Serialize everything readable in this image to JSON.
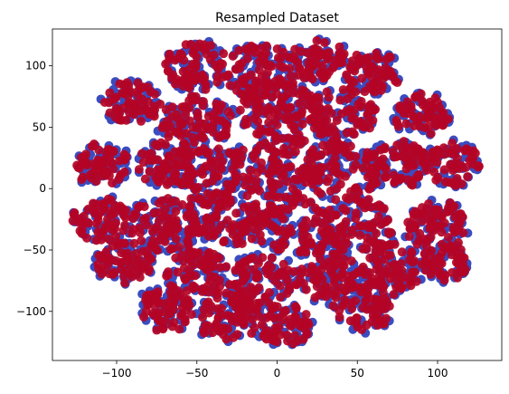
{
  "chart_data": {
    "type": "scatter",
    "title": "Resampled Dataset",
    "xlabel": "",
    "ylabel": "",
    "xlim": [
      -140,
      140
    ],
    "ylim": [
      -140,
      130
    ],
    "xticks": [
      -100,
      -50,
      0,
      50,
      100
    ],
    "yticks": [
      -100,
      -50,
      0,
      50,
      100
    ],
    "grid": false,
    "legend": "none",
    "colors": {
      "class_a": "#3b4cc0",
      "class_b": "#b40426"
    },
    "clusters": [
      {
        "x": -50,
        "y": 100,
        "r": 16
      },
      {
        "x": -10,
        "y": 95,
        "r": 18
      },
      {
        "x": 25,
        "y": 105,
        "r": 14
      },
      {
        "x": 60,
        "y": 95,
        "r": 14
      },
      {
        "x": -90,
        "y": 70,
        "r": 14
      },
      {
        "x": -50,
        "y": 55,
        "r": 18
      },
      {
        "x": 0,
        "y": 65,
        "r": 20
      },
      {
        "x": 40,
        "y": 60,
        "r": 18
      },
      {
        "x": 90,
        "y": 60,
        "r": 14
      },
      {
        "x": -110,
        "y": 20,
        "r": 14
      },
      {
        "x": -70,
        "y": 20,
        "r": 14
      },
      {
        "x": -40,
        "y": 10,
        "r": 20
      },
      {
        "x": 0,
        "y": 20,
        "r": 22
      },
      {
        "x": 40,
        "y": 15,
        "r": 20
      },
      {
        "x": 75,
        "y": 20,
        "r": 16
      },
      {
        "x": 110,
        "y": 20,
        "r": 14
      },
      {
        "x": -110,
        "y": -25,
        "r": 14
      },
      {
        "x": -70,
        "y": -30,
        "r": 18
      },
      {
        "x": -30,
        "y": -25,
        "r": 18
      },
      {
        "x": 10,
        "y": -30,
        "r": 20
      },
      {
        "x": 50,
        "y": -30,
        "r": 18
      },
      {
        "x": 100,
        "y": -30,
        "r": 16
      },
      {
        "x": -95,
        "y": -60,
        "r": 14
      },
      {
        "x": -50,
        "y": -70,
        "r": 16
      },
      {
        "x": -10,
        "y": -75,
        "r": 16
      },
      {
        "x": 30,
        "y": -70,
        "r": 16
      },
      {
        "x": 70,
        "y": -65,
        "r": 16
      },
      {
        "x": 105,
        "y": -60,
        "r": 12
      },
      {
        "x": -70,
        "y": -100,
        "r": 14
      },
      {
        "x": -30,
        "y": -105,
        "r": 16
      },
      {
        "x": 5,
        "y": -110,
        "r": 14
      },
      {
        "x": 55,
        "y": -95,
        "r": 16
      }
    ]
  }
}
